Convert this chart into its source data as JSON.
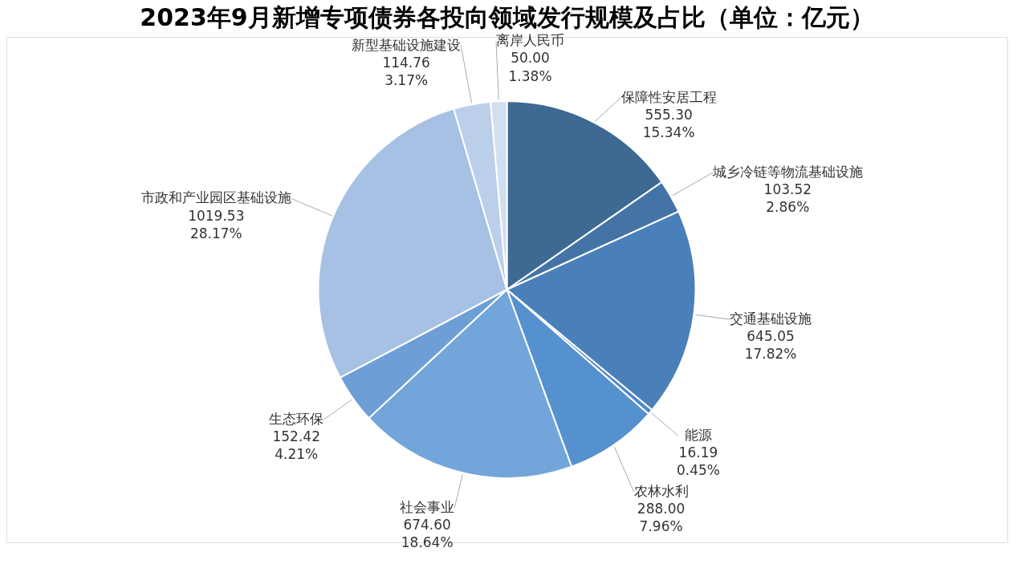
{
  "chart_data": {
    "type": "pie",
    "title": "2023年9月新增专项债券各投向领域发行规模及占比（单位：亿元）",
    "categories": [
      "保障性安居工程",
      "城乡冷链等物流基础设施",
      "交通基础设施",
      "能源",
      "农林水利",
      "社会事业",
      "生态环保",
      "市政和产业园区基础设施",
      "新型基础设施建设",
      "离岸人民币"
    ],
    "values": [
      555.3,
      103.52,
      645.05,
      16.19,
      288.0,
      674.6,
      152.42,
      1019.53,
      114.76,
      50.0
    ],
    "value_labels": [
      "555.30\n15.34%",
      "103.52\n2.86%",
      "645.05\n17.82%",
      "16.19\n0.45%",
      "288.00\n7.96%",
      "674.60\n18.64%",
      "152.42\n4.21%",
      "1019.53\n28.17%",
      "114.76\n3.17%",
      "50.00\n1.38%"
    ],
    "colors": [
      "#3d6993",
      "#4474a6",
      "#4a80b9",
      "#4f89c6",
      "#5591cf",
      "#72a5da",
      "#6d9fd6",
      "#a6c1e3",
      "#bccfea",
      "#d2dff0"
    ]
  }
}
